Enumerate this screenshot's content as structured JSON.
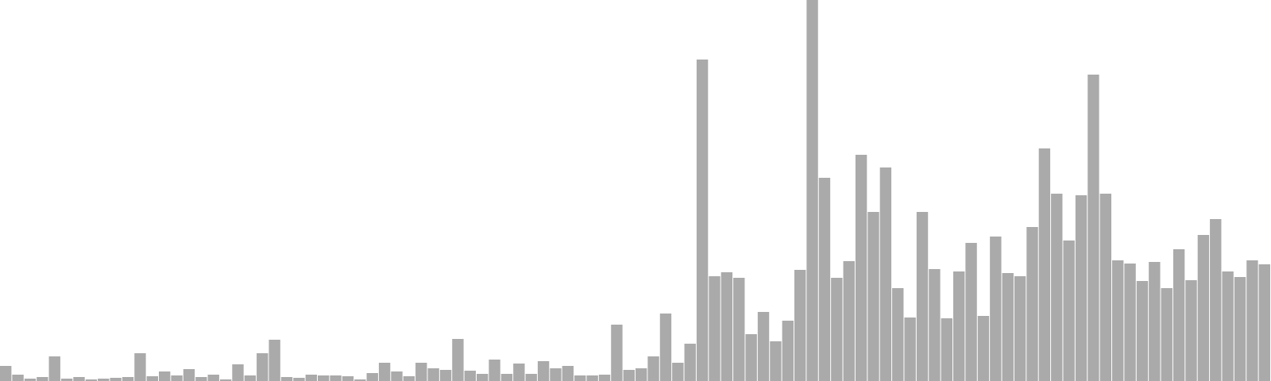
{
  "chart_data": {
    "type": "bar",
    "title": "",
    "xlabel": "",
    "ylabel": "",
    "grid": false,
    "legend": "none",
    "ylim": [
      0,
      480
    ],
    "bar_color": "#aaaaaa",
    "values": [
      19,
      8,
      3,
      5,
      31,
      3,
      5,
      2,
      3,
      4,
      5,
      35,
      6,
      12,
      7,
      15,
      5,
      8,
      2,
      21,
      7,
      35,
      52,
      5,
      4,
      8,
      7,
      7,
      6,
      2,
      10,
      23,
      12,
      6,
      23,
      16,
      14,
      53,
      13,
      9,
      27,
      9,
      22,
      9,
      25,
      16,
      19,
      7,
      7,
      8,
      71,
      14,
      16,
      31,
      85,
      23,
      47,
      405,
      132,
      137,
      130,
      59,
      87,
      50,
      76,
      140,
      480,
      256,
      130,
      151,
      285,
      213,
      269,
      117,
      80,
      213,
      141,
      79,
      138,
      174,
      82,
      182,
      136,
      132,
      194,
      293,
      236,
      177,
      234,
      386,
      236,
      152,
      148,
      126,
      150,
      117,
      166,
      127,
      184,
      204,
      138,
      131,
      152,
      147
    ]
  }
}
